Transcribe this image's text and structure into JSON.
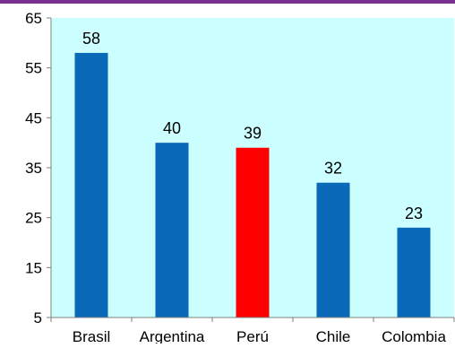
{
  "chart_data": {
    "type": "bar",
    "categories": [
      "Brasil",
      "Argentina",
      "Perú",
      "Chile",
      "Colombia"
    ],
    "values": [
      58,
      40,
      39,
      32,
      23
    ],
    "data_labels": [
      "58",
      "40",
      "39",
      "32",
      "23"
    ],
    "title": "",
    "xlabel": "",
    "ylabel": "",
    "ylim": [
      5,
      65
    ],
    "yticks": [
      5,
      15,
      25,
      35,
      45,
      55,
      65
    ],
    "ytick_labels": [
      "5",
      "15",
      "25",
      "35",
      "45",
      "55",
      "65"
    ],
    "grid": false,
    "legend": "none",
    "colors": {
      "bar_default": "#0a6ab8",
      "bar_highlight": "#ff0000",
      "plot_background": "#ccffff",
      "top_rule": "#7b2e91",
      "axis": "#7f7f7f",
      "text": "#000000"
    },
    "highlight_index": 2
  }
}
